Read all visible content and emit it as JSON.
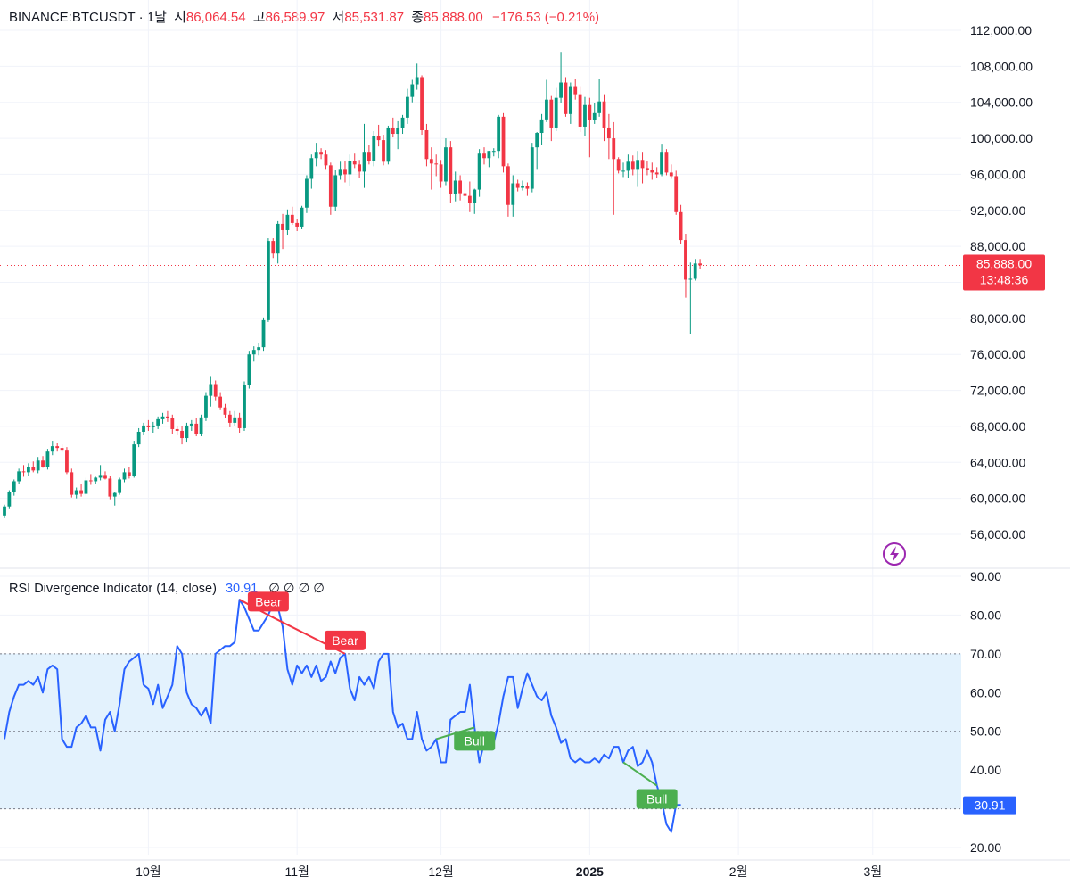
{
  "header": {
    "symbol": "BINANCE:BTCUSDT · 1날",
    "open_label": "시",
    "open": "86,064.54",
    "high_label": "고",
    "high": "86,589.97",
    "low_label": "저",
    "low": "85,531.87",
    "close_label": "종",
    "close": "85,888.00",
    "change": "−176.53 (−0.21%)"
  },
  "price_badge": {
    "price": "85,888.00",
    "countdown": "13:48:36"
  },
  "rsi_header": {
    "name": "RSI Divergence Indicator (14, close)",
    "value": "30.91",
    "nan": "∅ ∅ ∅ ∅"
  },
  "rsi_badge": "30.91",
  "colors": {
    "up": "#089981",
    "down": "#f23645",
    "rsi": "#2962ff",
    "band": "#e3f2fd",
    "bull": "#4caf50",
    "bear": "#f23645",
    "bolt": "#9c27b0"
  },
  "icons": {
    "bolt": "lightning-bolt-icon"
  },
  "chart_data": [
    {
      "type": "candlestick",
      "ylim": [
        52000,
        114000
      ],
      "yticks": [
        "112,000.00",
        "108,000.00",
        "104,000.00",
        "100,000.00",
        "96,000.00",
        "92,000.00",
        "88,000.00",
        "84,000.00",
        "80,000.00",
        "76,000.00",
        "72,000.00",
        "68,000.00",
        "64,000.00",
        "60,000.00",
        "56,000.00"
      ],
      "ytick_values": [
        112000,
        108000,
        104000,
        100000,
        96000,
        92000,
        88000,
        84000,
        80000,
        76000,
        72000,
        68000,
        64000,
        60000,
        56000
      ],
      "xticks": [
        "10월",
        "11월",
        "12월",
        "2025",
        "2월",
        "3월"
      ],
      "xtick_index": [
        30,
        61,
        91,
        122,
        153,
        181
      ],
      "last_price": 85888,
      "ohlc": [
        [
          58100,
          59300,
          57800,
          59100
        ],
        [
          59100,
          60900,
          58900,
          60700
        ],
        [
          60700,
          62100,
          60300,
          61900
        ],
        [
          61900,
          63300,
          61600,
          63000
        ],
        [
          63000,
          63700,
          62400,
          62900
        ],
        [
          62900,
          63900,
          62500,
          63500
        ],
        [
          63500,
          64100,
          62900,
          63100
        ],
        [
          63100,
          64600,
          62800,
          64200
        ],
        [
          64200,
          64700,
          63400,
          63500
        ],
        [
          63500,
          65500,
          63200,
          65200
        ],
        [
          65200,
          66400,
          64800,
          65800
        ],
        [
          65800,
          66200,
          65200,
          65600
        ],
        [
          65600,
          66000,
          65100,
          65400
        ],
        [
          65400,
          65700,
          62700,
          62900
        ],
        [
          62900,
          63300,
          60100,
          60400
        ],
        [
          60400,
          61200,
          60000,
          60900
        ],
        [
          60900,
          61600,
          60200,
          60500
        ],
        [
          60500,
          62300,
          60300,
          62000
        ],
        [
          62000,
          62700,
          61500,
          61900
        ],
        [
          61900,
          62400,
          61600,
          62300
        ],
        [
          62300,
          63700,
          62000,
          62600
        ],
        [
          62600,
          63000,
          62100,
          62200
        ],
        [
          62200,
          62500,
          59900,
          60200
        ],
        [
          60200,
          60700,
          59200,
          60600
        ],
        [
          60600,
          62300,
          60400,
          62100
        ],
        [
          62100,
          63300,
          61800,
          62900
        ],
        [
          62900,
          63500,
          62200,
          62500
        ],
        [
          62500,
          66400,
          62300,
          66000
        ],
        [
          66000,
          67800,
          65700,
          67400
        ],
        [
          67400,
          68400,
          67000,
          68100
        ],
        [
          68100,
          68700,
          67500,
          67900
        ],
        [
          67900,
          68500,
          67300,
          68100
        ],
        [
          68100,
          69100,
          67700,
          68800
        ],
        [
          68800,
          69500,
          68300,
          69100
        ],
        [
          69100,
          69700,
          68500,
          68900
        ],
        [
          68900,
          69300,
          67200,
          67700
        ],
        [
          67700,
          68100,
          67000,
          67500
        ],
        [
          67500,
          68000,
          66000,
          66700
        ],
        [
          66700,
          68400,
          66300,
          68100
        ],
        [
          68100,
          68700,
          67500,
          68300
        ],
        [
          68300,
          68900,
          66900,
          67200
        ],
        [
          67200,
          69300,
          66900,
          69000
        ],
        [
          69000,
          71800,
          68600,
          71400
        ],
        [
          71400,
          73500,
          70200,
          72700
        ],
        [
          72700,
          73100,
          70900,
          71300
        ],
        [
          71300,
          71800,
          69800,
          70100
        ],
        [
          70100,
          70500,
          68900,
          69300
        ],
        [
          69300,
          69700,
          67900,
          68400
        ],
        [
          68400,
          69700,
          68100,
          69000
        ],
        [
          69000,
          69500,
          67300,
          67800
        ],
        [
          67800,
          73000,
          67500,
          72600
        ],
        [
          72600,
          76400,
          72200,
          76000
        ],
        [
          76000,
          76900,
          75200,
          76500
        ],
        [
          76500,
          77300,
          75900,
          76800
        ],
        [
          76800,
          80100,
          76400,
          79800
        ],
        [
          79800,
          88900,
          79600,
          88600
        ],
        [
          88600,
          88900,
          86700,
          87200
        ],
        [
          87200,
          90800,
          86100,
          90500
        ],
        [
          90500,
          91600,
          87700,
          89800
        ],
        [
          89800,
          92100,
          89300,
          91500
        ],
        [
          91500,
          92400,
          90400,
          90600
        ],
        [
          90600,
          91000,
          89700,
          90200
        ],
        [
          90200,
          92500,
          89900,
          92300
        ],
        [
          92300,
          95900,
          91700,
          95500
        ],
        [
          95500,
          98200,
          94400,
          97800
        ],
        [
          97800,
          99500,
          96900,
          98500
        ],
        [
          98500,
          98900,
          97700,
          98200
        ],
        [
          98200,
          98700,
          96600,
          97000
        ],
        [
          97000,
          97300,
          91500,
          92400
        ],
        [
          92400,
          96500,
          91900,
          95900
        ],
        [
          95900,
          97400,
          95400,
          96600
        ],
        [
          96600,
          97500,
          95100,
          96000
        ],
        [
          96000,
          98200,
          94700,
          97500
        ],
        [
          97500,
          98300,
          96700,
          97100
        ],
        [
          97100,
          97600,
          95600,
          96300
        ],
        [
          96300,
          101600,
          94500,
          98500
        ],
        [
          98500,
          99300,
          97100,
          97500
        ],
        [
          97500,
          100800,
          96900,
          100300
        ],
        [
          100300,
          101500,
          99100,
          99800
        ],
        [
          99800,
          100400,
          97000,
          97400
        ],
        [
          97400,
          101400,
          97100,
          101200
        ],
        [
          101200,
          102300,
          100100,
          100500
        ],
        [
          100500,
          101900,
          98800,
          101100
        ],
        [
          101100,
          102600,
          100500,
          102300
        ],
        [
          102300,
          105500,
          101600,
          104600
        ],
        [
          104600,
          106500,
          104000,
          106000
        ],
        [
          106000,
          108300,
          105400,
          106800
        ],
        [
          106800,
          107000,
          100400,
          100900
        ],
        [
          100900,
          101600,
          96900,
          97700
        ],
        [
          97700,
          99000,
          94300,
          97200
        ],
        [
          97200,
          98200,
          95800,
          97100
        ],
        [
          97100,
          97600,
          94500,
          95200
        ],
        [
          95200,
          100000,
          94800,
          99000
        ],
        [
          99000,
          99700,
          92800,
          93800
        ],
        [
          93800,
          96300,
          93000,
          95300
        ],
        [
          95300,
          95900,
          93100,
          93900
        ],
        [
          93900,
          95200,
          92400,
          93600
        ],
        [
          93600,
          95200,
          91800,
          92800
        ],
        [
          92800,
          94400,
          91600,
          94300
        ],
        [
          94300,
          98800,
          93500,
          98300
        ],
        [
          98300,
          99000,
          97100,
          97800
        ],
        [
          97800,
          98600,
          96800,
          98600
        ],
        [
          98600,
          98900,
          98000,
          98600
        ],
        [
          98600,
          102600,
          97800,
          102400
        ],
        [
          102400,
          102800,
          96200,
          96900
        ],
        [
          96900,
          97200,
          91300,
          92600
        ],
        [
          92600,
          95900,
          91300,
          95000
        ],
        [
          95000,
          95400,
          94100,
          94500
        ],
        [
          94500,
          95300,
          94200,
          94700
        ],
        [
          94700,
          95100,
          93600,
          94400
        ],
        [
          94400,
          99500,
          94000,
          99000
        ],
        [
          99000,
          100700,
          96600,
          100600
        ],
        [
          100600,
          102700,
          99300,
          102100
        ],
        [
          102100,
          106500,
          101800,
          104300
        ],
        [
          104300,
          104700,
          99700,
          101200
        ],
        [
          101200,
          105600,
          100800,
          104500
        ],
        [
          104500,
          109600,
          103900,
          106200
        ],
        [
          106200,
          106800,
          102400,
          102700
        ],
        [
          102700,
          106200,
          101600,
          105800
        ],
        [
          105800,
          106600,
          104300,
          104900
        ],
        [
          104900,
          105800,
          100700,
          101300
        ],
        [
          101300,
          104600,
          100300,
          103700
        ],
        [
          103700,
          104500,
          97900,
          102000
        ],
        [
          102000,
          103900,
          101600,
          102800
        ],
        [
          102800,
          106600,
          102400,
          104100
        ],
        [
          104100,
          104900,
          99700,
          101200
        ],
        [
          101200,
          102700,
          97700,
          100000
        ],
        [
          100000,
          101800,
          91500,
          97700
        ],
        [
          97700,
          97900,
          96100,
          96400
        ],
        [
          96400,
          97300,
          95700,
          96400
        ],
        [
          96400,
          98200,
          95600,
          97400
        ],
        [
          97400,
          98100,
          95900,
          96600
        ],
        [
          96600,
          98600,
          94600,
          97600
        ],
        [
          97600,
          98500,
          95000,
          96700
        ],
        [
          96700,
          97500,
          95900,
          96500
        ],
        [
          96500,
          97300,
          95400,
          96200
        ],
        [
          96200,
          96800,
          95600,
          96000
        ],
        [
          96000,
          99400,
          95800,
          98500
        ],
        [
          98500,
          98800,
          95900,
          96200
        ],
        [
          96200,
          97100,
          95500,
          95800
        ],
        [
          95800,
          96400,
          91500,
          91800
        ],
        [
          91800,
          92600,
          88300,
          88700
        ],
        [
          88700,
          89400,
          82300,
          84300
        ],
        [
          84300,
          86200,
          78300,
          84400
        ],
        [
          84400,
          86600,
          84200,
          86100
        ],
        [
          86100,
          86600,
          85500,
          85900
        ]
      ]
    },
    {
      "type": "line",
      "name": "RSI Divergence Indicator (14, close)",
      "ylim": [
        18,
        91
      ],
      "yticks": [
        "90.00",
        "80.00",
        "70.00",
        "60.00",
        "50.00",
        "40.00",
        "30.00",
        "20.00"
      ],
      "ytick_values": [
        90,
        80,
        70,
        60,
        50,
        40,
        30,
        20
      ],
      "levels": {
        "upper": 70,
        "middle": 50,
        "lower": 30
      },
      "rsi": [
        48,
        55,
        59,
        62,
        62,
        63,
        62,
        64,
        60,
        66,
        67,
        66,
        48,
        46,
        46,
        51,
        52,
        54,
        51,
        51,
        45,
        53,
        55,
        50,
        57,
        66,
        68,
        69,
        70,
        62,
        61,
        57,
        62,
        56,
        59,
        62,
        72,
        70,
        60,
        57,
        56,
        54,
        56,
        52,
        70,
        71,
        72,
        72,
        73,
        84,
        82,
        79,
        76,
        76,
        78,
        80,
        83,
        82,
        77,
        66,
        62,
        67,
        65,
        67,
        64,
        67,
        63,
        64,
        68,
        65,
        69,
        70,
        61,
        58,
        64,
        62,
        64,
        61,
        68,
        70,
        70,
        55,
        51,
        52,
        48,
        48,
        55,
        48,
        45,
        46,
        48,
        42,
        42,
        53,
        54,
        55,
        55,
        62,
        51,
        42,
        47,
        47,
        47,
        52,
        59,
        64,
        64,
        56,
        61,
        65,
        62,
        59,
        58,
        60,
        54,
        51,
        47,
        48,
        43,
        42,
        43,
        42,
        42,
        43,
        42,
        44,
        43,
        46,
        46,
        42,
        45,
        46,
        41,
        42,
        45,
        42,
        36,
        32,
        26,
        24,
        31,
        31
      ],
      "divergences": [
        {
          "label": "Bear",
          "kind": "bear",
          "from_index": 49,
          "to_index": 55
        },
        {
          "label": "Bear",
          "kind": "bear",
          "from_index": 55,
          "to_index": 71
        },
        {
          "label": "Bull",
          "kind": "bull",
          "from_index": 90,
          "to_index": 98
        },
        {
          "label": "Bull",
          "kind": "bull",
          "from_index": 129,
          "to_index": 136
        }
      ]
    }
  ]
}
